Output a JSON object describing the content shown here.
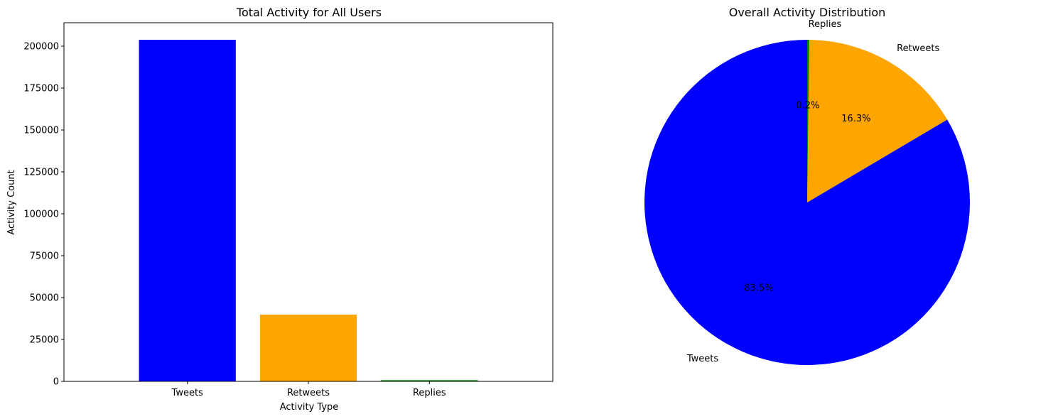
{
  "chart_data": [
    {
      "type": "bar",
      "title": "Total Activity for All Users",
      "xlabel": "Activity Type",
      "ylabel": "Activity Count",
      "categories": [
        "Tweets",
        "Retweets",
        "Replies"
      ],
      "values": [
        203800,
        39800,
        700
      ],
      "colors": [
        "#0000ff",
        "#ffa500",
        "#008000"
      ],
      "ylim": [
        0,
        213990
      ],
      "yticks": [
        0,
        25000,
        50000,
        75000,
        100000,
        125000,
        150000,
        175000,
        200000
      ],
      "ytick_labels": [
        "0",
        "25000",
        "50000",
        "75000",
        "100000",
        "125000",
        "150000",
        "175000",
        "200000"
      ],
      "grid": false
    },
    {
      "type": "pie",
      "title": "Overall Activity Distribution",
      "labels": [
        "Tweets",
        "Retweets",
        "Replies"
      ],
      "values": [
        83.5,
        16.3,
        0.2
      ],
      "pct_labels": [
        "83.5%",
        "16.3%",
        "0.2%"
      ],
      "colors": [
        "#0000ff",
        "#ffa500",
        "#008000"
      ],
      "start_angle_deg": 90
    }
  ]
}
